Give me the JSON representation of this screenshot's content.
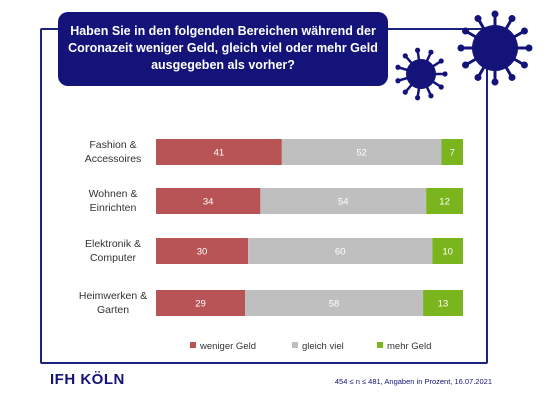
{
  "header": {
    "title_lines": [
      "Haben Sie in den folgenden Bereichen während der",
      "Coronazeit weniger Geld, gleich viel oder mehr Geld",
      "ausgegeben als vorher?"
    ]
  },
  "icons": [
    "virus-icon",
    "virus-icon"
  ],
  "colors": {
    "title_bg": "#14137a",
    "frame": "#1a237e",
    "weniger": "#b85456",
    "gleich": "#bfbfbf",
    "mehr": "#7ab51d"
  },
  "chart_data": {
    "type": "bar",
    "orientation": "horizontal",
    "stacked": true,
    "categories": [
      [
        "Fashion &",
        "Accessoires"
      ],
      [
        "Wohnen &",
        "Einrichten"
      ],
      [
        "Elektronik &",
        "Computer"
      ],
      [
        "Heimwerken &",
        "Garten"
      ]
    ],
    "series": [
      {
        "name": "weniger Geld",
        "values": [
          41,
          34,
          30,
          29
        ],
        "color": "#b85456"
      },
      {
        "name": "gleich viel",
        "values": [
          52,
          54,
          60,
          58
        ],
        "color": "#bfbfbf"
      },
      {
        "name": "mehr Geld",
        "values": [
          7,
          12,
          10,
          13
        ],
        "color": "#7ab51d"
      }
    ],
    "xlim": [
      0,
      100
    ],
    "legend_position": "bottom",
    "grid": false
  },
  "footer": {
    "logo": "IFH KÖLN",
    "note": "454 ≤ n ≤ 481, Angaben in Prozent, 16.07.2021"
  }
}
